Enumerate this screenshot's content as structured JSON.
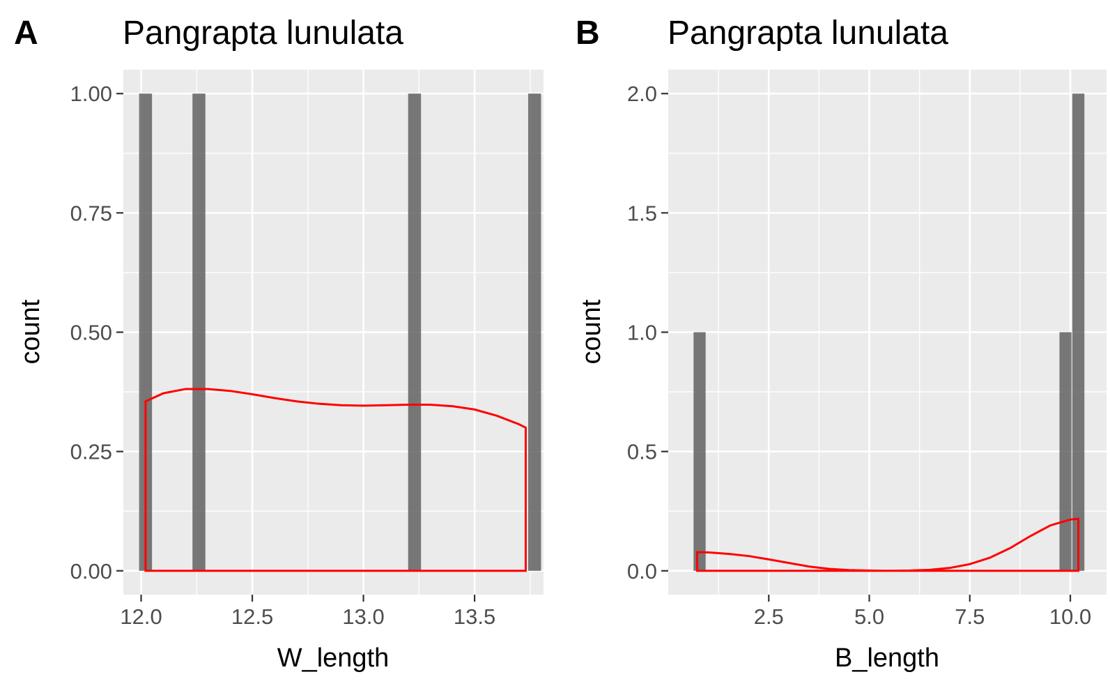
{
  "chart_data": [
    {
      "panel": "A",
      "type": "bar",
      "title": "Pangrapta lunulata",
      "xlabel": "W_length",
      "ylabel": "count",
      "xlim": [
        11.92,
        13.81
      ],
      "ylim": [
        -0.05,
        1.05
      ],
      "x_ticks": [
        12.0,
        12.5,
        13.0,
        13.5
      ],
      "x_tick_labels": [
        "12.0",
        "12.5",
        "13.0",
        "13.5"
      ],
      "y_ticks": [
        0,
        0.25,
        0.5,
        0.75,
        1.0
      ],
      "y_tick_labels": [
        "0.00",
        "0.25",
        "0.50",
        "0.75",
        "1.00"
      ],
      "grid": true,
      "bar_width": 0.058,
      "bars": [
        {
          "x": 12.02,
          "count": 1
        },
        {
          "x": 12.26,
          "count": 1
        },
        {
          "x": 13.23,
          "count": 1
        },
        {
          "x": 13.77,
          "count": 1
        }
      ],
      "density": {
        "color": "#ff0000",
        "x": [
          12.02,
          12.1,
          12.2,
          12.3,
          12.4,
          12.5,
          12.6,
          12.7,
          12.8,
          12.9,
          13.0,
          13.1,
          13.2,
          13.3,
          13.4,
          13.5,
          13.6,
          13.7,
          13.73
        ],
        "y": [
          0.355,
          0.372,
          0.381,
          0.381,
          0.377,
          0.37,
          0.362,
          0.355,
          0.35,
          0.347,
          0.346,
          0.347,
          0.348,
          0.348,
          0.345,
          0.338,
          0.325,
          0.307,
          0.3
        ]
      }
    },
    {
      "panel": "B",
      "type": "bar",
      "title": "Pangrapta lunulata",
      "xlabel": "B_length",
      "ylabel": "count",
      "xlim": [
        0.0,
        10.9
      ],
      "ylim": [
        -0.1,
        2.1
      ],
      "x_ticks": [
        2.5,
        5.0,
        7.5,
        10.0
      ],
      "x_tick_labels": [
        "2.5",
        "5.0",
        "7.5",
        "10.0"
      ],
      "y_ticks": [
        0,
        0.5,
        1.0,
        1.5,
        2.0
      ],
      "y_tick_labels": [
        "0.0",
        "0.5",
        "1.0",
        "1.5",
        "2.0"
      ],
      "grid": true,
      "bar_width": 0.3,
      "bars": [
        {
          "x": 0.78,
          "count": 1
        },
        {
          "x": 9.88,
          "count": 1
        },
        {
          "x": 10.2,
          "count": 2
        }
      ],
      "density": {
        "color": "#ff0000",
        "x": [
          0.72,
          1.0,
          1.5,
          2.0,
          2.5,
          3.0,
          3.5,
          4.0,
          4.5,
          5.0,
          5.5,
          6.0,
          6.5,
          7.0,
          7.5,
          8.0,
          8.5,
          9.0,
          9.5,
          10.0,
          10.2
        ],
        "y": [
          0.078,
          0.077,
          0.071,
          0.062,
          0.048,
          0.033,
          0.018,
          0.008,
          0.003,
          0.001,
          0.0,
          0.001,
          0.004,
          0.012,
          0.028,
          0.055,
          0.095,
          0.145,
          0.19,
          0.215,
          0.218
        ]
      }
    }
  ]
}
